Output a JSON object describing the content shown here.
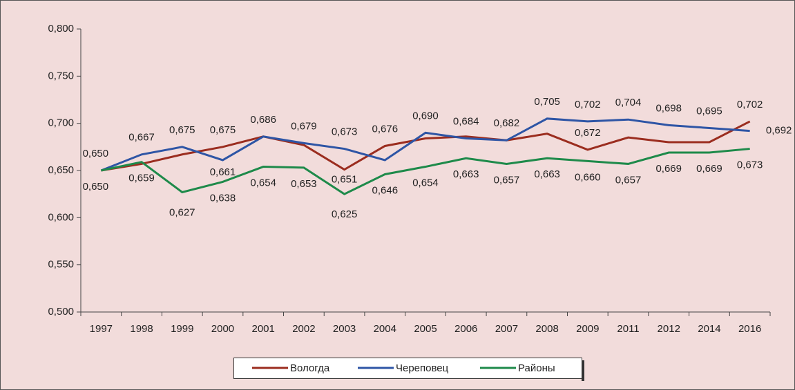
{
  "chart_data": {
    "type": "line",
    "categories": [
      "1997",
      "1998",
      "1999",
      "2000",
      "2001",
      "2002",
      "2003",
      "2004",
      "2005",
      "2006",
      "2007",
      "2008",
      "2009",
      "2011",
      "2012",
      "2014",
      "2016"
    ],
    "series": [
      {
        "name": "Вологда",
        "color": "#9b2d1f",
        "values": [
          0.65,
          0.657,
          0.667,
          0.675,
          0.686,
          0.677,
          0.651,
          0.676,
          0.684,
          0.686,
          0.682,
          0.689,
          0.672,
          0.685,
          0.68,
          0.68,
          0.702
        ],
        "value_labels": [
          null,
          null,
          null,
          "0,675",
          null,
          null,
          "0,651",
          "0,676",
          null,
          null,
          null,
          null,
          "0,672",
          null,
          null,
          null,
          "0,702"
        ]
      },
      {
        "name": "Череповец",
        "color": "#2e55a5",
        "values": [
          0.65,
          0.667,
          0.675,
          0.661,
          0.686,
          0.679,
          0.673,
          0.661,
          0.69,
          0.684,
          0.682,
          0.705,
          0.702,
          0.704,
          0.698,
          0.695,
          0.692
        ],
        "value_labels": [
          "0,650",
          "0,667",
          "0,675",
          "0,661",
          "0,686",
          "0,679",
          "0,673",
          null,
          "0,690",
          "0,684",
          "0,682",
          "0,705",
          "0,702",
          "0,704",
          "0,698",
          "0,695",
          "0,692"
        ]
      },
      {
        "name": "Районы",
        "color": "#1e8a4a",
        "values": [
          0.65,
          0.659,
          0.627,
          0.638,
          0.654,
          0.653,
          0.625,
          0.646,
          0.654,
          0.663,
          0.657,
          0.663,
          0.66,
          0.657,
          0.669,
          0.669,
          0.673
        ],
        "value_labels": [
          "0,650",
          "0,659",
          "0,627",
          "0,638",
          "0,654",
          "0,653",
          "0,625",
          "0,646",
          "0,654",
          "0,663",
          "0,657",
          "0,663",
          "0,660",
          "0,657",
          "0,669",
          "0,669",
          "0,673"
        ]
      }
    ],
    "ylim": [
      0.5,
      0.8
    ],
    "yticks": [
      {
        "value": 0.5,
        "label": "0,500"
      },
      {
        "value": 0.55,
        "label": "0,550"
      },
      {
        "value": 0.6,
        "label": "0,600"
      },
      {
        "value": 0.65,
        "label": "0,650"
      },
      {
        "value": 0.7,
        "label": "0,700"
      },
      {
        "value": 0.75,
        "label": "0,750"
      },
      {
        "value": 0.8,
        "label": "0,800"
      }
    ],
    "legend": "bottom"
  }
}
